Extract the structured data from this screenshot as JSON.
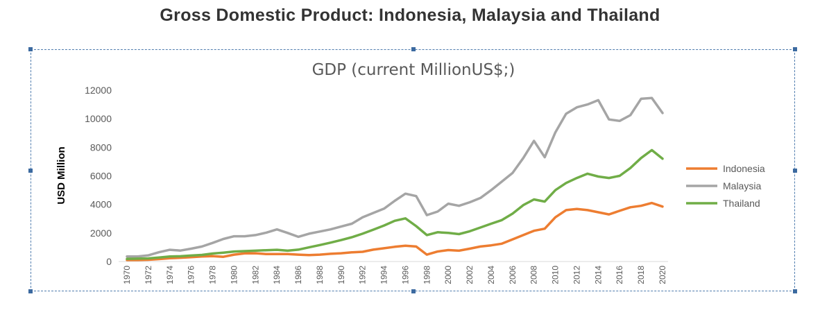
{
  "page": {
    "title": "Gross Domestic Product: Indonesia, Malaysia and Thailand"
  },
  "chart_data": {
    "type": "line",
    "title": "GDP (current MillionUS$;)",
    "xlabel": "",
    "ylabel": "USD Million",
    "ylim": [
      0,
      12000
    ],
    "yticks": [
      0,
      2000,
      4000,
      6000,
      8000,
      10000,
      12000
    ],
    "grid": false,
    "legend_position": "right",
    "x": [
      1970,
      1971,
      1972,
      1973,
      1974,
      1975,
      1976,
      1977,
      1978,
      1979,
      1980,
      1981,
      1982,
      1983,
      1984,
      1985,
      1986,
      1987,
      1988,
      1989,
      1990,
      1991,
      1992,
      1993,
      1994,
      1995,
      1996,
      1997,
      1998,
      1999,
      2000,
      2001,
      2002,
      2003,
      2004,
      2005,
      2006,
      2007,
      2008,
      2009,
      2010,
      2011,
      2012,
      2013,
      2014,
      2015,
      2016,
      2017,
      2018,
      2019,
      2020
    ],
    "xtick_labels": [
      "1970",
      "1972",
      "1974",
      "1976",
      "1978",
      "1980",
      "1982",
      "1984",
      "1986",
      "1988",
      "1990",
      "1992",
      "1994",
      "1996",
      "1998",
      "2000",
      "2002",
      "2004",
      "2006",
      "2008",
      "2010",
      "2012",
      "2014",
      "2016",
      "2018",
      "2020"
    ],
    "series": [
      {
        "name": "Indonesia",
        "color": "#ed7d31",
        "values": [
          100,
          100,
          120,
          170,
          230,
          260,
          300,
          350,
          380,
          330,
          480,
          570,
          580,
          520,
          520,
          520,
          480,
          450,
          480,
          540,
          580,
          640,
          680,
          830,
          930,
          1030,
          1110,
          1050,
          480,
          700,
          800,
          760,
          900,
          1050,
          1130,
          1250,
          1550,
          1850,
          2150,
          2300,
          3100,
          3600,
          3680,
          3600,
          3450,
          3300,
          3550,
          3800,
          3900,
          4100,
          3850
        ]
      },
      {
        "name": "Malaysia",
        "color": "#a5a5a5",
        "values": [
          350,
          350,
          430,
          650,
          820,
          770,
          900,
          1050,
          1300,
          1580,
          1770,
          1770,
          1850,
          2020,
          2250,
          2000,
          1730,
          1950,
          2100,
          2250,
          2450,
          2650,
          3100,
          3400,
          3700,
          4250,
          4750,
          4580,
          3250,
          3500,
          4050,
          3900,
          4150,
          4450,
          5000,
          5600,
          6200,
          7250,
          8450,
          7300,
          9050,
          10350,
          10800,
          11000,
          11300,
          9950,
          9850,
          10250,
          11400,
          11450,
          10400
        ]
      },
      {
        "name": "Thailand",
        "color": "#70ad47",
        "values": [
          180,
          200,
          220,
          280,
          350,
          370,
          420,
          460,
          560,
          620,
          700,
          730,
          760,
          790,
          820,
          760,
          830,
          990,
          1150,
          1320,
          1500,
          1700,
          1950,
          2230,
          2520,
          2850,
          3020,
          2480,
          1850,
          2050,
          2000,
          1920,
          2120,
          2380,
          2650,
          2900,
          3350,
          3950,
          4350,
          4200,
          5000,
          5500,
          5850,
          6150,
          5950,
          5850,
          6000,
          6550,
          7250,
          7800,
          7200
        ]
      }
    ]
  }
}
